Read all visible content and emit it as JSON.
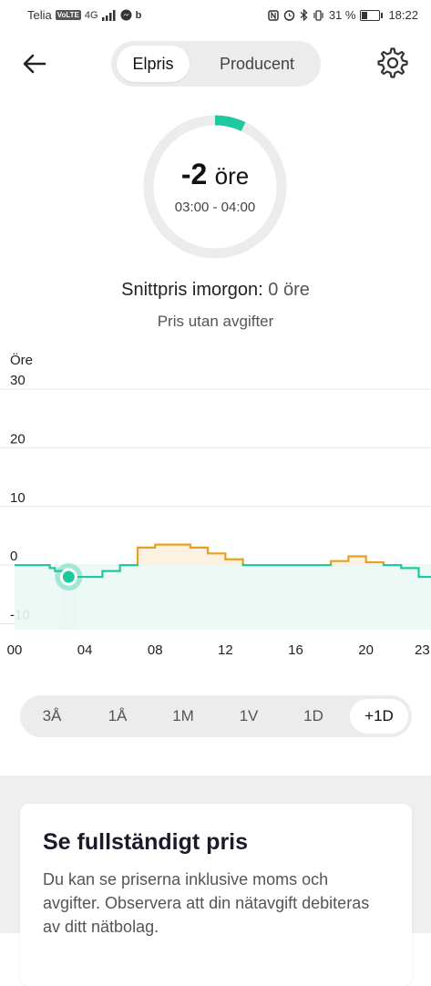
{
  "status_bar": {
    "carrier": "Telia",
    "volte": "VoLTE",
    "network": "4G",
    "battery_percent": "31 %",
    "battery_level": 0.31,
    "time": "18:22"
  },
  "header": {
    "back_icon": "arrow-left-icon",
    "settings_icon": "gear-icon",
    "tabs": [
      {
        "label": "Elpris",
        "active": true
      },
      {
        "label": "Producent",
        "active": false
      }
    ]
  },
  "gauge": {
    "price_value": "-2",
    "price_unit": "öre",
    "time_range": "03:00 - 04:00",
    "arc_fraction": 0.07,
    "arc_color": "#1ec9a0",
    "track_color": "#ececec"
  },
  "summary": {
    "avg_label": "Snittpris imorgon:",
    "avg_value": "0 öre",
    "subtitle": "Pris utan avgifter"
  },
  "chart_data": {
    "type": "line",
    "ylabel": "Öre",
    "ylim": [
      -11,
      30
    ],
    "yticks": [
      30,
      20,
      10,
      0,
      -10
    ],
    "xlim": [
      0,
      23.7
    ],
    "xticks": [
      {
        "v": 0,
        "label": "00"
      },
      {
        "v": 4,
        "label": "04"
      },
      {
        "v": 8,
        "label": "08"
      },
      {
        "v": 12,
        "label": "12"
      },
      {
        "v": 16,
        "label": "16"
      },
      {
        "v": 20,
        "label": "20"
      },
      {
        "v": 23.2,
        "label": "23"
      }
    ],
    "grid": true,
    "selected_hour": 3,
    "selected_value": -2,
    "negative_color": "#1ec9a0",
    "positive_color": "#e8a020",
    "series": [
      {
        "values": [
          {
            "x": 0,
            "y": 0
          },
          {
            "x": 1,
            "y": 0
          },
          {
            "x": 2,
            "y": -0.5
          },
          {
            "x": 2.3,
            "y": -1
          },
          {
            "x": 3,
            "y": -2
          },
          {
            "x": 4,
            "y": -2
          },
          {
            "x": 5,
            "y": -1
          },
          {
            "x": 6,
            "y": 0
          },
          {
            "x": 7,
            "y": 3
          },
          {
            "x": 8,
            "y": 3.5
          },
          {
            "x": 9,
            "y": 3.5
          },
          {
            "x": 10,
            "y": 3
          },
          {
            "x": 11,
            "y": 2
          },
          {
            "x": 12,
            "y": 1
          },
          {
            "x": 13,
            "y": 0
          },
          {
            "x": 14,
            "y": 0
          },
          {
            "x": 15,
            "y": 0
          },
          {
            "x": 16,
            "y": 0
          },
          {
            "x": 17,
            "y": 0
          },
          {
            "x": 18,
            "y": 0.7
          },
          {
            "x": 19,
            "y": 1.5
          },
          {
            "x": 20,
            "y": 0.5
          },
          {
            "x": 21,
            "y": 0
          },
          {
            "x": 22,
            "y": -0.5
          },
          {
            "x": 23,
            "y": -2
          }
        ]
      }
    ]
  },
  "range_selector": {
    "options": [
      {
        "label": "3Å",
        "active": false
      },
      {
        "label": "1Å",
        "active": false
      },
      {
        "label": "1M",
        "active": false
      },
      {
        "label": "1V",
        "active": false
      },
      {
        "label": "1D",
        "active": false
      },
      {
        "label": "+1D",
        "active": true
      }
    ]
  },
  "card": {
    "title": "Se fullständigt pris",
    "text": "Du kan se priserna inklusive moms och avgifter. Observera att din nätavgift debiteras av ditt nätbolag."
  }
}
